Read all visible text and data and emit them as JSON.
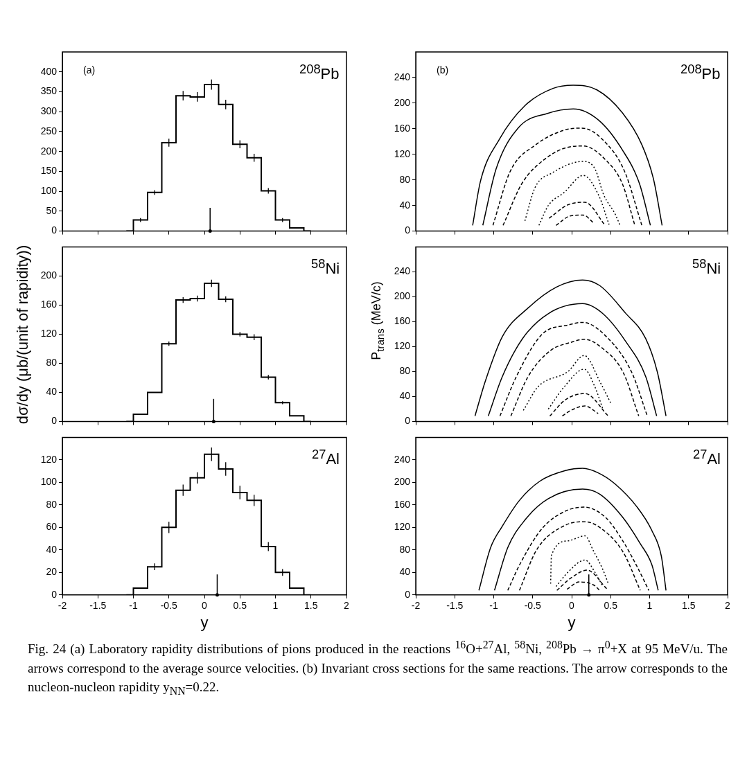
{
  "chart_data": [
    {
      "type": "step",
      "x": [
        -1.1,
        -0.9,
        -0.7,
        -0.5,
        -0.3,
        -0.1,
        0.1,
        0.3,
        0.5,
        0.7,
        0.9,
        1.1,
        1.3,
        1.5
      ],
      "values": [
        0,
        28,
        97,
        222,
        340,
        337,
        368,
        318,
        218,
        184,
        101,
        28,
        8,
        0
      ],
      "errors": [
        null,
        5,
        6,
        10,
        12,
        12,
        13,
        12,
        10,
        10,
        7,
        5,
        null,
        null
      ],
      "color": "#000000",
      "xlim": [
        -2,
        2
      ],
      "xticks": [
        -2,
        -1.5,
        -1,
        -0.5,
        0,
        0.5,
        1,
        1.5,
        2
      ],
      "ylim": [
        0,
        450
      ],
      "yticks": [
        0,
        50,
        100,
        150,
        200,
        250,
        300,
        350,
        400
      ],
      "tick_labels": "y",
      "ref_lines": [
        {
          "axis": "x",
          "value": 0.08
        }
      ],
      "annotations": [
        "(a)",
        "$^{208}$Pb"
      ]
    },
    {
      "type": "line",
      "series": [
        {
          "color": "#000000",
          "line_style": "solid",
          "x": [
            -1.27,
            -1.17,
            -0.93,
            -0.6,
            -0.24,
            0.02,
            0.32,
            0.65,
            0.9,
            1.05,
            1.16
          ],
          "values": [
            9,
            78,
            143,
            196,
            223,
            228,
            221,
            185,
            135,
            81,
            9
          ]
        },
        {
          "color": "#000000",
          "line_style": "solid",
          "x": [
            -1.14,
            -0.97,
            -0.68,
            -0.31,
            0.02,
            0.35,
            0.65,
            0.87,
            1.01
          ],
          "values": [
            9,
            97,
            162,
            184,
            191,
            173,
            127,
            74,
            9
          ]
        },
        {
          "color": "#000000",
          "line_style": "dashed",
          "x": [
            -1.01,
            -0.79,
            -0.46,
            -0.09,
            0.13,
            0.43,
            0.68,
            0.9
          ],
          "values": [
            9,
            93,
            135,
            158,
            161,
            139,
            93,
            9
          ]
        },
        {
          "color": "#000000",
          "line_style": "dashed",
          "x": [
            -0.88,
            -0.64,
            -0.35,
            -0.01,
            0.15,
            0.43,
            0.65,
            0.81
          ],
          "values": [
            9,
            74,
            112,
            132,
            133,
            112,
            74,
            9
          ]
        },
        {
          "color": "#000000",
          "line_style": "dotted",
          "x": [
            -0.6,
            -0.47,
            -0.25,
            0.15,
            0.3,
            0.41,
            0.56,
            0.62
          ],
          "values": [
            16,
            68,
            91,
            109,
            97,
            57,
            26,
            9
          ]
        },
        {
          "color": "#000000",
          "line_style": "dotted",
          "x": [
            -0.42,
            -0.3,
            -0.1,
            0.15,
            0.35,
            0.48
          ],
          "values": [
            9,
            40,
            60,
            87,
            55,
            10
          ]
        },
        {
          "color": "#000000",
          "line_style": "dashed",
          "x": [
            -0.29,
            -0.05,
            0.17,
            0.43
          ],
          "values": [
            20,
            41,
            45,
            9
          ]
        },
        {
          "color": "#000000",
          "line_style": "dashed",
          "x": [
            -0.2,
            -0.01,
            0.15,
            0.28
          ],
          "values": [
            9,
            24,
            25,
            13
          ]
        }
      ],
      "xlim": [
        -2,
        2
      ],
      "xticks": [
        -2,
        -1.5,
        -1,
        -0.5,
        0,
        0.5,
        1,
        1.5,
        2
      ],
      "ylim": [
        0,
        280
      ],
      "yticks": [
        0,
        40,
        80,
        120,
        160,
        200,
        240
      ],
      "tick_labels": "y",
      "annotations": [
        "(b)",
        "$^{208}$Pb"
      ]
    },
    {
      "type": "step",
      "x": [
        -1.1,
        -0.9,
        -0.7,
        -0.5,
        -0.3,
        -0.1,
        0.1,
        0.3,
        0.5,
        0.7,
        0.9,
        1.1,
        1.3,
        1.5
      ],
      "values": [
        0,
        10,
        40,
        107,
        167,
        169,
        190,
        168,
        120,
        116,
        61,
        26,
        8,
        0
      ],
      "errors": [
        null,
        null,
        null,
        3,
        4,
        4,
        5,
        4,
        3,
        4,
        3,
        2,
        null,
        null
      ],
      "color": "#000000",
      "xlim": [
        -2,
        2
      ],
      "xticks": [
        -2,
        -1.5,
        -1,
        -0.5,
        0,
        0.5,
        1,
        1.5,
        2
      ],
      "ylim": [
        0,
        240
      ],
      "yticks": [
        0,
        40,
        80,
        120,
        160,
        200
      ],
      "tick_labels": "y",
      "ylabel": "dσ/dy (μb/(unit of rapidity))",
      "ref_lines": [
        {
          "axis": "x",
          "value": 0.13
        }
      ],
      "annotations": [
        null,
        "$^{58}$Ni"
      ]
    },
    {
      "type": "line",
      "series": [
        {
          "color": "#000000",
          "line_style": "solid",
          "x": [
            -1.24,
            -1.11,
            -0.89,
            -0.56,
            -0.19,
            0.14,
            0.36,
            0.69,
            0.95,
            1.1,
            1.21
          ],
          "values": [
            9,
            64,
            136,
            182,
            216,
            227,
            218,
            174,
            133,
            79,
            9
          ]
        },
        {
          "color": "#000000",
          "line_style": "solid",
          "x": [
            -1.07,
            -0.89,
            -0.63,
            -0.3,
            0.14,
            0.4,
            0.69,
            0.95,
            1.09
          ],
          "values": [
            9,
            72,
            133,
            173,
            189,
            173,
            129,
            72,
            9
          ]
        },
        {
          "color": "#000000",
          "line_style": "dashed",
          "x": [
            -0.92,
            -0.71,
            -0.38,
            -0.04,
            0.14,
            0.47,
            0.77,
            0.97
          ],
          "values": [
            9,
            72,
            140,
            155,
            159,
            133,
            79,
            9
          ]
        },
        {
          "color": "#000000",
          "line_style": "dashed",
          "x": [
            -0.78,
            -0.56,
            -0.27,
            -0.01,
            0.16,
            0.4,
            0.66,
            0.86
          ],
          "values": [
            9,
            72,
            114,
            127,
            132,
            117,
            79,
            9
          ]
        },
        {
          "color": "#000000",
          "line_style": "dotted",
          "x": [
            -0.62,
            -0.43,
            -0.05,
            0.16,
            0.37,
            0.5
          ],
          "values": [
            18,
            56,
            80,
            106,
            62,
            30
          ]
        },
        {
          "color": "#000000",
          "line_style": "dotted",
          "x": [
            -0.3,
            -0.1,
            0.16,
            0.3,
            0.4
          ],
          "values": [
            20,
            55,
            84,
            55,
            20
          ]
        },
        {
          "color": "#000000",
          "line_style": "dashed",
          "x": [
            -0.28,
            -0.08,
            0.17,
            0.47
          ],
          "values": [
            9,
            35,
            45,
            9
          ]
        },
        {
          "color": "#000000",
          "line_style": "dashed",
          "x": [
            -0.12,
            -0.01,
            0.17,
            0.34
          ],
          "values": [
            9,
            18,
            25,
            13
          ]
        }
      ],
      "xlim": [
        -2,
        2
      ],
      "xticks": [
        -2,
        -1.5,
        -1,
        -0.5,
        0,
        0.5,
        1,
        1.5,
        2
      ],
      "ylim": [
        0,
        280
      ],
      "yticks": [
        0,
        40,
        80,
        120,
        160,
        200,
        240
      ],
      "tick_labels": "y",
      "ylabel": "P$_{trans}$ (MeV/c)",
      "annotations": [
        null,
        "$^{58}$Ni"
      ]
    },
    {
      "type": "step",
      "x": [
        -1.1,
        -0.9,
        -0.7,
        -0.5,
        -0.3,
        -0.1,
        0.1,
        0.3,
        0.5,
        0.7,
        0.9,
        1.1,
        1.3,
        1.5
      ],
      "values": [
        0,
        6,
        25,
        60,
        93,
        104,
        125,
        112,
        91,
        84,
        43,
        20,
        6,
        0
      ],
      "errors": [
        null,
        null,
        3,
        5,
        5,
        5,
        6,
        6,
        6,
        5,
        4,
        3,
        null,
        null
      ],
      "color": "#000000",
      "xlim": [
        -2,
        2
      ],
      "xticks": [
        -2,
        -1.5,
        -1,
        -0.5,
        0,
        0.5,
        1,
        1.5,
        2
      ],
      "ylim": [
        0,
        140
      ],
      "yticks": [
        0,
        20,
        40,
        60,
        80,
        100,
        120
      ],
      "xlabel": "y",
      "ref_lines": [
        {
          "axis": "x",
          "value": 0.18
        }
      ],
      "annotations": [
        null,
        "$^{27}$Al"
      ]
    },
    {
      "type": "line",
      "series": [
        {
          "color": "#000000",
          "line_style": "solid",
          "x": [
            -1.19,
            -1.04,
            -0.89,
            -0.67,
            -0.41,
            -0.08,
            0.14,
            0.34,
            0.55,
            0.84,
            1.03,
            1.15,
            1.21
          ],
          "values": [
            8,
            84,
            122,
            168,
            202,
            221,
            225,
            217,
            198,
            156,
            114,
            69,
            8
          ]
        },
        {
          "color": "#000000",
          "line_style": "solid",
          "x": [
            -0.99,
            -0.82,
            -0.6,
            -0.3,
            0.14,
            0.36,
            0.66,
            0.88,
            1.03,
            1.11
          ],
          "values": [
            8,
            84,
            133,
            171,
            188,
            179,
            137,
            91,
            53,
            8
          ]
        },
        {
          "color": "#000000",
          "line_style": "dashed",
          "x": [
            -0.82,
            -0.67,
            -0.38,
            -0.08,
            0.16,
            0.44,
            0.66,
            0.84,
            0.99
          ],
          "values": [
            8,
            53,
            118,
            149,
            156,
            137,
            95,
            50,
            8
          ]
        },
        {
          "color": "#000000",
          "line_style": "dashed",
          "x": [
            -0.67,
            -0.45,
            -0.08,
            0.17,
            0.36,
            0.66,
            0.88
          ],
          "values": [
            8,
            80,
            124,
            130,
            120,
            76,
            8
          ]
        },
        {
          "color": "#000000",
          "line_style": "dotted",
          "x": [
            -0.27,
            -0.26,
            -0.05,
            0.17,
            0.28,
            0.4,
            0.47
          ],
          "values": [
            20,
            70,
            96,
            105,
            78,
            45,
            20
          ]
        },
        {
          "color": "#000000",
          "line_style": "dotted",
          "x": [
            -0.2,
            -0.05,
            0.17,
            0.3,
            0.4
          ],
          "values": [
            15,
            40,
            62,
            40,
            15
          ]
        },
        {
          "color": "#000000",
          "line_style": "dashed",
          "x": [
            -0.19,
            -0.01,
            0.2,
            0.45
          ],
          "values": [
            8,
            30,
            44,
            11
          ]
        },
        {
          "color": "#000000",
          "line_style": "dashed",
          "x": [
            -0.06,
            0.1,
            0.29,
            0.36
          ],
          "values": [
            10,
            23,
            17,
            8
          ]
        }
      ],
      "xlim": [
        -2,
        2
      ],
      "xticks": [
        -2,
        -1.5,
        -1,
        -0.5,
        0,
        0.5,
        1,
        1.5,
        2
      ],
      "ylim": [
        0,
        280
      ],
      "yticks": [
        0,
        40,
        80,
        120,
        160,
        200,
        240
      ],
      "xlabel": "y",
      "ref_lines": [
        {
          "axis": "x",
          "value": 0.22
        }
      ],
      "annotations": [
        null,
        "$^{27}$Al",
        "Fig. 24 (a)   Laboratory rapidity distributions of pions produced in the reactions $^{16}$O+$^{27}$Al, $^{58}$Ni, $^{208}$Pb → π$^{0}$+X at 95 MeV/u. The arrows correspond to the average source velocities. (b)   Invariant cross sections for the same reactions. The arrow corresponds to the nucleon-nucleon rapidity y$_{NN}$=0.22."
      ]
    }
  ]
}
